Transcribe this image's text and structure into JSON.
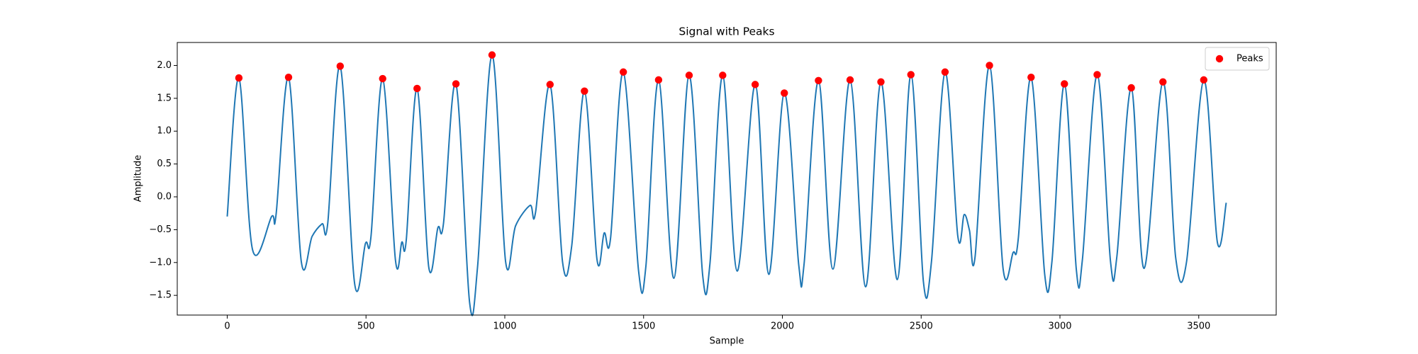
{
  "chart_data": {
    "type": "line",
    "title": "Signal with Peaks",
    "x_label": "Sample",
    "y_label": "Amplitude",
    "xlim": [
      -180,
      3779
    ],
    "ylim": [
      -1.8,
      2.35
    ],
    "xticks": [
      0,
      500,
      1000,
      1500,
      2000,
      2500,
      3000,
      3500
    ],
    "yticks": [
      {
        "value": -1.5,
        "label": "−1.5"
      },
      {
        "value": -1.0,
        "label": "−1.0"
      },
      {
        "value": -0.5,
        "label": "−0.5"
      },
      {
        "value": 0,
        "label": "0.0"
      },
      0.5,
      {
        "value": 1,
        "label": "1.0"
      },
      1.5,
      {
        "value": 2,
        "label": "2.0"
      }
    ],
    "grid": false,
    "legend": "upper right",
    "series": [
      {
        "type": "line",
        "color": "#1f77b4",
        "x": [
          0,
          42,
          91,
          160,
          176,
          221,
          267,
          306,
          342,
          362,
          407,
          459,
          498,
          518,
          560,
          606,
          629,
          645,
          684,
          726,
          759,
          779,
          824,
          873,
          902,
          954,
          1003,
          1039,
          1091,
          1111,
          1163,
          1208,
          1241,
          1287,
          1332,
          1358,
          1381,
          1427,
          1482,
          1508,
          1554,
          1609,
          1664,
          1713,
          1739,
          1785,
          1837,
          1902,
          1951,
          2007,
          2059,
          2078,
          2130,
          2182,
          2244,
          2300,
          2355,
          2414,
          2463,
          2508,
          2537,
          2586,
          2632,
          2655,
          2674,
          2694,
          2746,
          2795,
          2831,
          2850,
          2896,
          2945,
          2971,
          3016,
          3059,
          3081,
          3134,
          3182,
          3205,
          3257,
          3303,
          3371,
          3417,
          3456,
          3518,
          3567,
          3599
        ],
        "values": [
          -0.3,
          1.81,
          -0.8,
          -0.3,
          -0.27,
          1.82,
          -0.99,
          -0.6,
          -0.41,
          -0.41,
          1.99,
          -1.32,
          -0.71,
          -0.6,
          1.8,
          -0.96,
          -0.69,
          -0.66,
          1.65,
          -1.07,
          -0.47,
          -0.41,
          1.72,
          -1.6,
          -1.06,
          2.16,
          -0.99,
          -0.44,
          -0.13,
          -0.23,
          1.71,
          -0.99,
          -0.75,
          1.61,
          -0.95,
          -0.55,
          -0.63,
          1.9,
          -1.13,
          -1.07,
          1.78,
          -1.24,
          1.85,
          -1.2,
          -1.02,
          1.85,
          -1.13,
          1.71,
          -1.18,
          1.58,
          -1.04,
          -1.03,
          1.77,
          -1.1,
          1.78,
          -1.37,
          1.75,
          -1.26,
          1.86,
          -1.29,
          -0.99,
          1.9,
          -0.6,
          -0.27,
          -0.51,
          -0.92,
          2.0,
          -1.09,
          -0.85,
          -0.63,
          1.82,
          -1.18,
          -0.99,
          1.72,
          -1.11,
          -0.95,
          1.86,
          -0.98,
          -0.91,
          1.66,
          -1.09,
          1.75,
          -0.93,
          -0.99,
          1.78,
          -0.69,
          -0.09
        ]
      },
      {
        "type": "scatter",
        "name": "Peaks",
        "color": "#ff0000",
        "x": [
          42,
          221,
          407,
          560,
          684,
          824,
          954,
          1163,
          1287,
          1427,
          1554,
          1664,
          1785,
          1902,
          2007,
          2130,
          2244,
          2355,
          2463,
          2586,
          2746,
          2896,
          3016,
          3134,
          3257,
          3371,
          3518
        ],
        "values": [
          1.81,
          1.82,
          1.99,
          1.8,
          1.65,
          1.72,
          2.16,
          1.71,
          1.61,
          1.9,
          1.78,
          1.85,
          1.85,
          1.71,
          1.58,
          1.77,
          1.78,
          1.75,
          1.86,
          1.9,
          2.0,
          1.82,
          1.72,
          1.86,
          1.66,
          1.75,
          1.78
        ]
      }
    ]
  }
}
